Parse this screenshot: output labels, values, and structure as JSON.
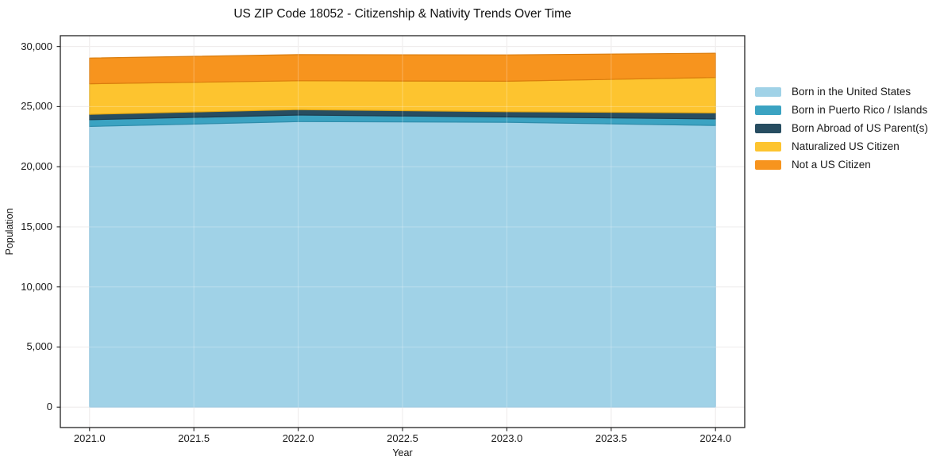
{
  "chart_data": {
    "type": "area",
    "stacked": true,
    "title": "US ZIP Code 18052 - Citizenship & Nativity Trends Over Time",
    "xlabel": "Year",
    "ylabel": "Population",
    "x": [
      2021,
      2022,
      2023,
      2024
    ],
    "series": [
      {
        "name": "Born in the United States",
        "color": "#a0d2e7",
        "edge": "#86bedb",
        "values": [
          23350,
          23750,
          23700,
          23430
        ]
      },
      {
        "name": "Born in Puerto Rico / Islands",
        "color": "#3ba3c2",
        "edge": "#2e8dab",
        "values": [
          560,
          550,
          440,
          550
        ]
      },
      {
        "name": "Born Abroad of US Parent(s)",
        "color": "#274d61",
        "edge": "#1c3b4c",
        "values": [
          450,
          450,
          440,
          500
        ]
      },
      {
        "name": "Naturalized US Citizen",
        "color": "#fdc42f",
        "edge": "#e2a713",
        "values": [
          2540,
          2400,
          2530,
          2940
        ]
      },
      {
        "name": "Not a US Citizen",
        "color": "#f7941e",
        "edge": "#da7c0d",
        "values": [
          2140,
          2170,
          2190,
          2020
        ]
      }
    ],
    "xlim": [
      2020.86,
      2024.14
    ],
    "ylim": [
      -1700,
      30900
    ],
    "xticks": [
      2021.0,
      2021.5,
      2022.0,
      2022.5,
      2023.0,
      2023.5,
      2024.0
    ],
    "xtick_labels": [
      "2021.0",
      "2021.5",
      "2022.0",
      "2022.5",
      "2023.0",
      "2023.5",
      "2024.0"
    ],
    "yticks": [
      0,
      5000,
      10000,
      15000,
      20000,
      25000,
      30000
    ],
    "ytick_labels": [
      "0",
      "5,000",
      "10,000",
      "15,000",
      "20,000",
      "25,000",
      "30,000"
    ],
    "grid": true,
    "legend_position": "right-outside",
    "colors": {
      "grid": "#e8e4e4",
      "axis": "#222222",
      "text": "#1a1a1a"
    }
  }
}
